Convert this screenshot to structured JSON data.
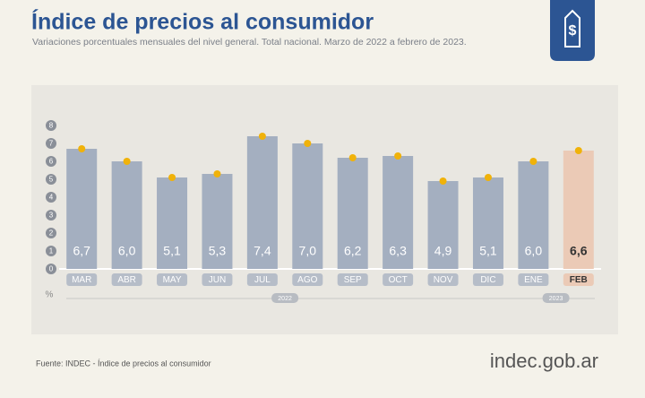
{
  "title": "Índice de precios al consumidor",
  "subtitle": "Variaciones porcentuales mensuales del nivel general. Total nacional. Marzo de 2022 a febrero de 2023.",
  "source": "Fuente: INDEC - Índice de precios al consumidor",
  "logo": "indec.gob.ar",
  "chart_data": {
    "type": "bar",
    "categories": [
      "MAR",
      "ABR",
      "MAY",
      "JUN",
      "JUL",
      "AGO",
      "SEP",
      "OCT",
      "NOV",
      "DIC",
      "ENE",
      "FEB"
    ],
    "values": [
      6.7,
      6.0,
      5.1,
      5.3,
      7.4,
      7.0,
      6.2,
      6.3,
      4.9,
      5.1,
      6.0,
      6.6
    ],
    "value_labels": [
      "6,7",
      "6,0",
      "5,1",
      "5,3",
      "7,4",
      "7,0",
      "6,2",
      "6,3",
      "4,9",
      "5,1",
      "6,0",
      "6,6"
    ],
    "colors": [
      "#a4afc0",
      "#a4afc0",
      "#a4afc0",
      "#a4afc0",
      "#a4afc0",
      "#a4afc0",
      "#a4afc0",
      "#a4afc0",
      "#a4afc0",
      "#a4afc0",
      "#a4afc0",
      "#ebcab6"
    ],
    "marker_color": "#f0b20a",
    "ylabel": "%",
    "ylim": [
      0,
      8
    ],
    "yticks": [
      0,
      1,
      2,
      3,
      4,
      5,
      6,
      7,
      8
    ],
    "periods": [
      {
        "label": "2022",
        "span": 10
      },
      {
        "label": "2023",
        "span": 2
      }
    ]
  }
}
